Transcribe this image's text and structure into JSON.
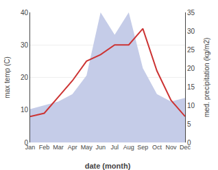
{
  "chart_data": {
    "type": "line",
    "xlabel": "date (month)",
    "ylabel": "max temp (C)",
    "y2label": "med. precipitation (kg/m2)",
    "categories": [
      "Jan",
      "Feb",
      "Mar",
      "Apr",
      "May",
      "Jun",
      "Jul",
      "Aug",
      "Sep",
      "Oct",
      "Nov",
      "Dec"
    ],
    "series": [
      {
        "type": "area",
        "axis": "y2",
        "color": "#c5cce8",
        "values": [
          9,
          10,
          11,
          13,
          18,
          35,
          29,
          35,
          20,
          13,
          11,
          12
        ]
      },
      {
        "type": "line",
        "color": "#cc3333",
        "values": [
          8,
          9,
          14,
          19,
          25,
          27,
          30,
          30,
          35,
          22,
          13,
          8
        ]
      }
    ],
    "ylim": [
      0,
      40
    ],
    "yticks": [
      0,
      10,
      20,
      30,
      40
    ],
    "y2lim": [
      0,
      35
    ],
    "y2ticks": [
      0,
      5,
      10,
      15,
      20,
      25,
      30,
      35
    ],
    "grid": true
  }
}
